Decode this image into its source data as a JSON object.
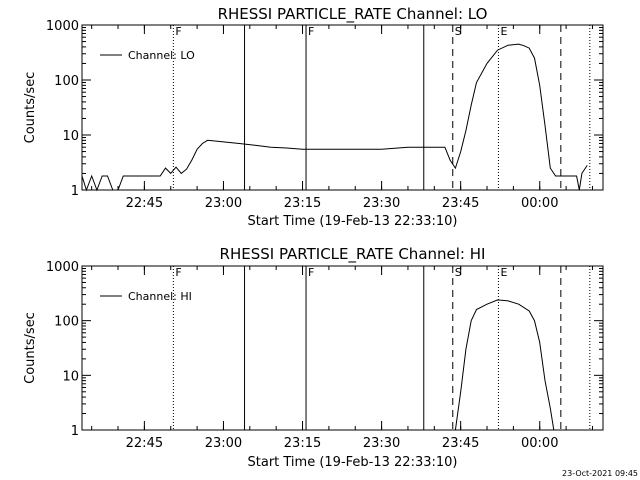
{
  "footer": {
    "timestamp": "23-Oct-2021 09:45"
  },
  "colors": {
    "background": "#ffffff",
    "foreground": "#000000"
  },
  "chart_data": [
    {
      "type": "line",
      "title": "RHESSI PARTICLE_RATE Channel: LO",
      "xlabel": "Start Time (19-Feb-13 22:33:10)",
      "ylabel": "Counts/sec",
      "yscale": "log",
      "ylim": [
        1,
        1000
      ],
      "xlim": [
        "22:33:10",
        "00:12:00"
      ],
      "x_ticks": [
        "22:45",
        "23:00",
        "23:15",
        "23:30",
        "23:45",
        "00:00"
      ],
      "y_ticks": [
        "1",
        "10",
        "100",
        "1000"
      ],
      "grid": false,
      "legend": {
        "position": "top-left",
        "entries": [
          "Channel: LO"
        ]
      },
      "series": [
        {
          "name": "Channel: LO",
          "x": [
            "22:33:10",
            "22:34:00",
            "22:35:00",
            "22:36:00",
            "22:37:00",
            "22:38:00",
            "22:39:00",
            "22:40:00",
            "22:41:00",
            "22:42:00",
            "22:44:00",
            "22:46:00",
            "22:48:00",
            "22:49:00",
            "22:50:00",
            "22:51:00",
            "22:52:00",
            "22:53:00",
            "22:54:00",
            "22:55:00",
            "22:56:00",
            "22:57:00",
            "23:00:00",
            "23:03:00",
            "23:06:00",
            "23:09:00",
            "23:12:00",
            "23:15:00",
            "23:20:00",
            "23:25:00",
            "23:30:00",
            "23:35:00",
            "23:38:00",
            "23:41:00",
            "23:42:00",
            "23:43:00",
            "23:44:00",
            "23:45:00",
            "23:46:00",
            "23:47:00",
            "23:48:00",
            "23:50:00",
            "23:52:00",
            "23:54:00",
            "23:56:00",
            "23:57:00",
            "23:58:00",
            "23:59:00",
            "00:00:00",
            "00:01:00",
            "00:02:00",
            "00:03:00",
            "00:04:00",
            "00:05:00",
            "00:06:00",
            "00:07:00",
            "00:07:30",
            "00:08:00",
            "00:09:00"
          ],
          "y": [
            1.8,
            1.0,
            1.8,
            1.0,
            1.8,
            1.8,
            1.0,
            1.0,
            1.8,
            1.8,
            1.8,
            1.8,
            1.8,
            2.5,
            2.0,
            2.6,
            2.0,
            2.4,
            3.5,
            5.5,
            7.0,
            8.0,
            7.5,
            7.0,
            6.5,
            6.0,
            5.8,
            5.5,
            5.5,
            5.5,
            5.5,
            6.0,
            6.0,
            6.0,
            6.0,
            3.5,
            2.5,
            5.0,
            12,
            35,
            90,
            200,
            350,
            430,
            450,
            420,
            380,
            250,
            80,
            15,
            2.5,
            1.8,
            1.8,
            1.8,
            1.8,
            1.8,
            1.0,
            2.0,
            2.8
          ]
        }
      ],
      "vlines": [
        {
          "time": "22:50:30",
          "style": "dotted",
          "label": "F"
        },
        {
          "time": "23:04:00",
          "style": "solid",
          "label": ""
        },
        {
          "time": "23:15:40",
          "style": "solid",
          "label": "F"
        },
        {
          "time": "23:38:00",
          "style": "solid",
          "label": ""
        },
        {
          "time": "23:43:30",
          "style": "dashed",
          "label": "S"
        },
        {
          "time": "23:52:10",
          "style": "dotted",
          "label": "E"
        },
        {
          "time": "00:04:00",
          "style": "dashed",
          "label": ""
        },
        {
          "time": "00:09:30",
          "style": "dotted",
          "label": ""
        }
      ]
    },
    {
      "type": "line",
      "title": "RHESSI PARTICLE_RATE Channel: HI",
      "xlabel": "Start Time (19-Feb-13 22:33:10)",
      "ylabel": "Counts/sec",
      "yscale": "log",
      "ylim": [
        1,
        1000
      ],
      "xlim": [
        "22:33:10",
        "00:12:00"
      ],
      "x_ticks": [
        "22:45",
        "23:00",
        "23:15",
        "23:30",
        "23:45",
        "00:00"
      ],
      "y_ticks": [
        "1",
        "10",
        "100",
        "1000"
      ],
      "grid": false,
      "legend": {
        "position": "top-left",
        "entries": [
          "Channel: HI"
        ]
      },
      "series": [
        {
          "name": "Channel: HI",
          "x": [
            "23:44:00",
            "23:45:00",
            "23:46:00",
            "23:47:00",
            "23:48:00",
            "23:50:00",
            "23:52:00",
            "23:54:00",
            "23:56:00",
            "23:58:00",
            "23:59:00",
            "00:00:00",
            "00:01:00",
            "00:02:00",
            "00:02:40"
          ],
          "y": [
            1.0,
            5.0,
            30,
            100,
            160,
            200,
            240,
            230,
            200,
            150,
            100,
            40,
            8,
            2.5,
            1.0
          ]
        }
      ],
      "vlines": [
        {
          "time": "22:50:30",
          "style": "dotted",
          "label": "F"
        },
        {
          "time": "23:04:00",
          "style": "solid",
          "label": ""
        },
        {
          "time": "23:15:40",
          "style": "solid",
          "label": "F"
        },
        {
          "time": "23:38:00",
          "style": "solid",
          "label": ""
        },
        {
          "time": "23:43:30",
          "style": "dashed",
          "label": "S"
        },
        {
          "time": "23:52:10",
          "style": "dotted",
          "label": "E"
        },
        {
          "time": "00:04:00",
          "style": "dashed",
          "label": ""
        },
        {
          "time": "00:09:30",
          "style": "dotted",
          "label": ""
        }
      ]
    }
  ]
}
